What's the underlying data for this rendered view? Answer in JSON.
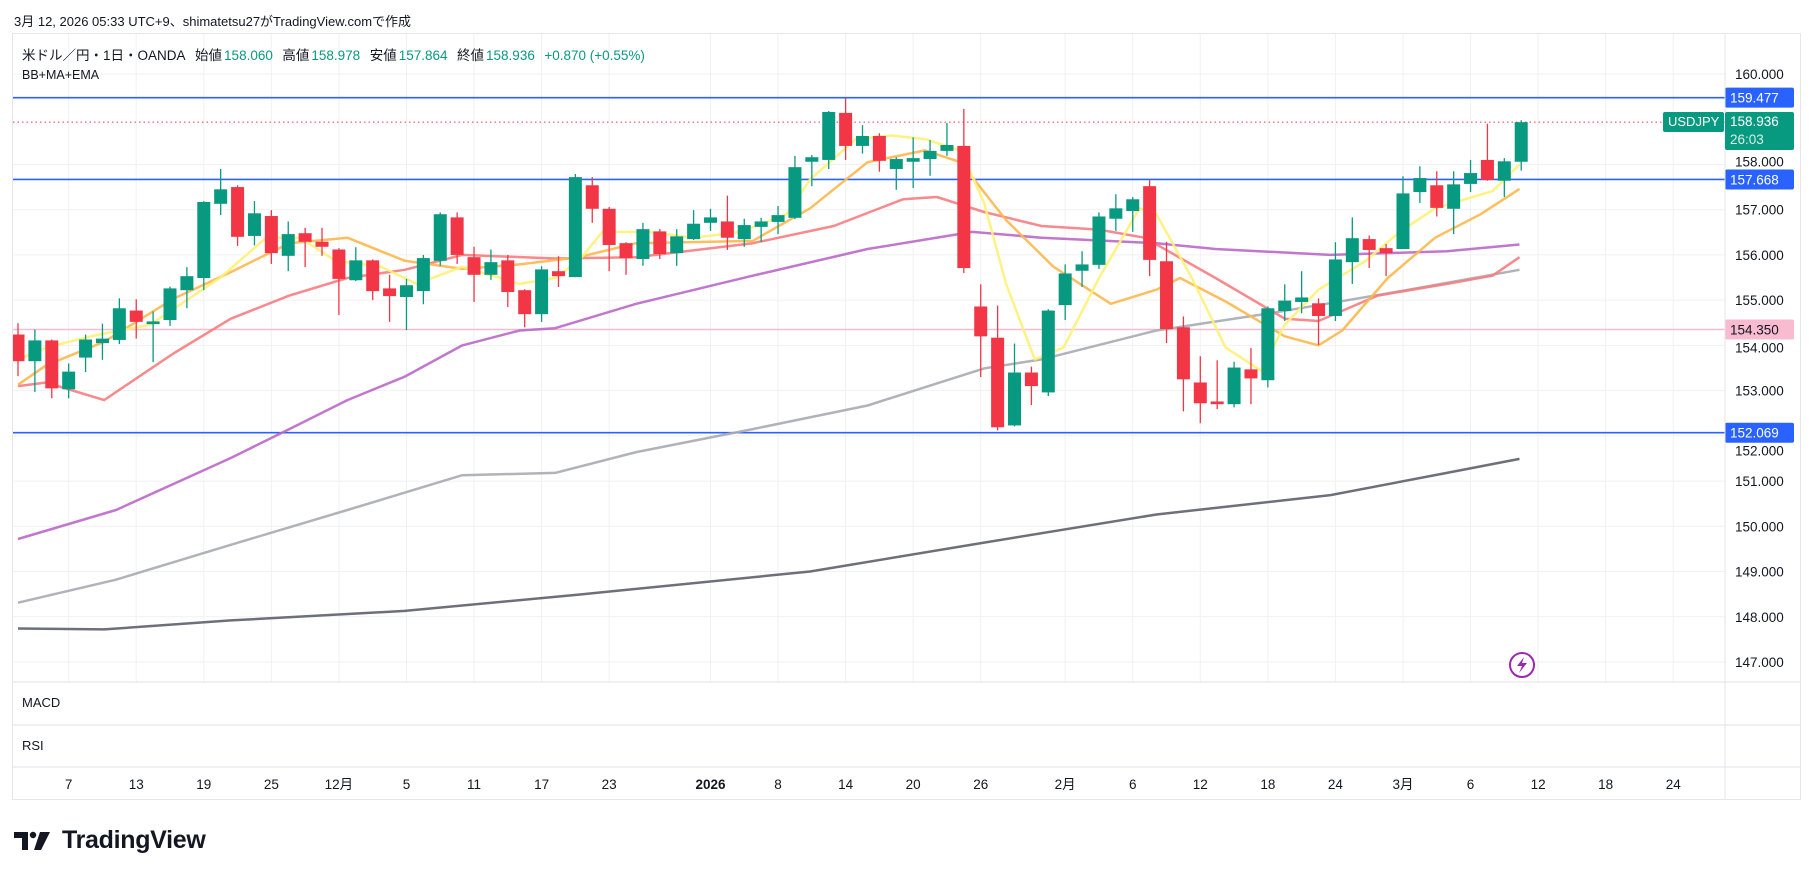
{
  "caption": "3月 12, 2026 05:33 UTC+9、shimatetsu27がTradingView.comで作成",
  "legend": {
    "symbol": "米ドル／円・1日・OANDA",
    "open_label": "始値",
    "open": "158.060",
    "high_label": "高値",
    "high": "158.978",
    "low_label": "安値",
    "low": "157.864",
    "close_label": "終値",
    "close": "158.936",
    "change": "+0.870 (+0.55%)"
  },
  "indicator_label": "BB+MA+EMA",
  "panels": {
    "macd": "MACD",
    "rsi": "RSI"
  },
  "symbol_tag": "USDJPY",
  "countdown": "26:03",
  "brand": "TradingView",
  "colors": {
    "up": "#089981",
    "down": "#f23645",
    "level": "#2962ff",
    "pink": "#f8bbd0"
  },
  "chart_data": {
    "type": "candlestick",
    "title": "米ドル／円・1日・OANDA",
    "ylim": [
      146.5,
      160.3
    ],
    "y_ticks": [
      "147.000",
      "148.000",
      "149.000",
      "150.000",
      "151.000",
      "152.000",
      "153.000",
      "154.000",
      "155.000",
      "156.000",
      "157.000",
      "158.000",
      "160.000"
    ],
    "y_tick_values": [
      147,
      148,
      149,
      150,
      151,
      152,
      153,
      154,
      155,
      156,
      157,
      158,
      160
    ],
    "x_ticks": [
      {
        "i": 3,
        "label": "7"
      },
      {
        "i": 7,
        "label": "13"
      },
      {
        "i": 11,
        "label": "19"
      },
      {
        "i": 15,
        "label": "25"
      },
      {
        "i": 19,
        "label": "12月"
      },
      {
        "i": 23,
        "label": "5"
      },
      {
        "i": 27,
        "label": "11"
      },
      {
        "i": 31,
        "label": "17"
      },
      {
        "i": 35,
        "label": "23"
      },
      {
        "i": 41,
        "label": "2026"
      },
      {
        "i": 45,
        "label": "8"
      },
      {
        "i": 49,
        "label": "14"
      },
      {
        "i": 53,
        "label": "20"
      },
      {
        "i": 57,
        "label": "26"
      },
      {
        "i": 62,
        "label": "2月"
      },
      {
        "i": 66,
        "label": "6"
      },
      {
        "i": 70,
        "label": "12"
      },
      {
        "i": 74,
        "label": "18"
      },
      {
        "i": 78,
        "label": "24"
      },
      {
        "i": 82,
        "label": "3月"
      },
      {
        "i": 86,
        "label": "6"
      },
      {
        "i": 90,
        "label": "12"
      },
      {
        "i": 94,
        "label": "18"
      },
      {
        "i": 98,
        "label": "24"
      }
    ],
    "ohlc": [
      [
        154.24,
        154.49,
        153.32,
        153.65
      ],
      [
        153.65,
        154.35,
        152.97,
        154.11
      ],
      [
        154.11,
        154.13,
        152.83,
        153.05
      ],
      [
        153.03,
        153.6,
        152.83,
        153.42
      ],
      [
        153.73,
        154.24,
        153.41,
        154.13
      ],
      [
        154.05,
        154.48,
        153.68,
        154.15
      ],
      [
        154.12,
        155.04,
        154.03,
        154.82
      ],
      [
        154.77,
        155.02,
        154.15,
        154.52
      ],
      [
        154.47,
        154.75,
        153.63,
        154.53
      ],
      [
        154.56,
        155.3,
        154.43,
        155.26
      ],
      [
        155.22,
        155.73,
        154.82,
        155.53
      ],
      [
        155.49,
        157.19,
        155.22,
        157.17
      ],
      [
        157.13,
        157.9,
        156.88,
        157.45
      ],
      [
        157.5,
        157.54,
        156.2,
        156.4
      ],
      [
        156.42,
        157.19,
        156.21,
        156.92
      ],
      [
        156.86,
        156.99,
        155.8,
        156.04
      ],
      [
        155.98,
        156.74,
        155.64,
        156.46
      ],
      [
        156.48,
        156.6,
        155.73,
        156.29
      ],
      [
        156.29,
        156.6,
        155.98,
        156.18
      ],
      [
        156.12,
        156.15,
        154.67,
        155.47
      ],
      [
        155.44,
        156.17,
        155.42,
        155.88
      ],
      [
        155.88,
        155.9,
        155.0,
        155.2
      ],
      [
        155.26,
        155.56,
        154.52,
        155.09
      ],
      [
        155.07,
        155.47,
        154.34,
        155.33
      ],
      [
        155.2,
        156.0,
        154.91,
        155.93
      ],
      [
        155.87,
        156.94,
        155.76,
        156.9
      ],
      [
        156.83,
        156.94,
        155.8,
        156.0
      ],
      [
        155.95,
        156.18,
        154.96,
        155.56
      ],
      [
        155.56,
        156.12,
        155.45,
        155.84
      ],
      [
        155.88,
        156.0,
        154.85,
        155.18
      ],
      [
        155.22,
        155.24,
        154.4,
        154.69
      ],
      [
        154.69,
        155.75,
        154.52,
        155.68
      ],
      [
        155.64,
        155.97,
        155.29,
        155.53
      ],
      [
        155.51,
        157.79,
        155.51,
        157.72
      ],
      [
        157.54,
        157.72,
        156.71,
        157.02
      ],
      [
        157.02,
        157.06,
        155.64,
        156.22
      ],
      [
        156.26,
        156.28,
        155.56,
        155.93
      ],
      [
        155.91,
        156.71,
        155.76,
        156.57
      ],
      [
        156.52,
        156.57,
        155.91,
        156.02
      ],
      [
        156.04,
        156.57,
        155.76,
        156.41
      ],
      [
        156.35,
        156.99,
        156.33,
        156.69
      ],
      [
        156.71,
        157.02,
        156.53,
        156.83
      ],
      [
        156.74,
        157.31,
        156.11,
        156.38
      ],
      [
        156.35,
        156.8,
        156.18,
        156.66
      ],
      [
        156.62,
        156.82,
        156.29,
        156.74
      ],
      [
        156.73,
        157.08,
        156.46,
        156.88
      ],
      [
        156.82,
        158.19,
        156.79,
        157.94
      ],
      [
        158.06,
        158.21,
        157.52,
        158.16
      ],
      [
        158.1,
        159.18,
        157.9,
        159.16
      ],
      [
        159.14,
        159.46,
        158.1,
        158.41
      ],
      [
        158.41,
        158.87,
        158.24,
        158.63
      ],
      [
        158.63,
        158.69,
        157.84,
        158.08
      ],
      [
        157.9,
        158.16,
        157.44,
        158.12
      ],
      [
        158.06,
        158.6,
        157.48,
        158.14
      ],
      [
        158.12,
        158.54,
        157.75,
        158.3
      ],
      [
        158.3,
        158.92,
        158.19,
        158.43
      ],
      [
        158.41,
        159.23,
        155.6,
        155.71
      ],
      [
        154.86,
        155.35,
        153.3,
        154.2
      ],
      [
        154.17,
        154.88,
        152.12,
        152.19
      ],
      [
        152.23,
        154.04,
        152.21,
        153.4
      ],
      [
        153.4,
        153.53,
        152.68,
        153.1
      ],
      [
        152.96,
        154.8,
        152.88,
        154.77
      ],
      [
        154.89,
        155.79,
        154.56,
        155.59
      ],
      [
        155.65,
        156.08,
        155.29,
        155.79
      ],
      [
        155.78,
        156.94,
        155.69,
        156.85
      ],
      [
        156.8,
        157.34,
        156.53,
        157.03
      ],
      [
        156.97,
        157.28,
        156.51,
        157.23
      ],
      [
        157.52,
        157.65,
        155.53,
        155.89
      ],
      [
        155.86,
        156.29,
        154.05,
        154.36
      ],
      [
        154.4,
        154.64,
        152.54,
        153.25
      ],
      [
        153.18,
        153.76,
        152.28,
        152.72
      ],
      [
        152.76,
        153.67,
        152.59,
        152.7
      ],
      [
        152.7,
        153.64,
        152.63,
        153.51
      ],
      [
        153.47,
        153.94,
        152.7,
        153.27
      ],
      [
        153.23,
        154.86,
        153.07,
        154.82
      ],
      [
        154.76,
        155.35,
        154.54,
        154.99
      ],
      [
        154.96,
        155.64,
        154.71,
        155.06
      ],
      [
        154.93,
        155.04,
        154.01,
        154.65
      ],
      [
        154.65,
        156.28,
        154.54,
        155.9
      ],
      [
        155.84,
        156.83,
        155.36,
        156.37
      ],
      [
        156.35,
        156.43,
        155.71,
        156.11
      ],
      [
        156.15,
        156.24,
        155.53,
        156.04
      ],
      [
        156.13,
        157.74,
        156.13,
        157.36
      ],
      [
        157.39,
        157.96,
        157.15,
        157.7
      ],
      [
        157.54,
        157.85,
        156.85,
        157.04
      ],
      [
        157.02,
        157.85,
        156.46,
        157.56
      ],
      [
        157.57,
        158.1,
        157.39,
        157.81
      ],
      [
        158.1,
        158.9,
        157.64,
        157.66
      ],
      [
        157.64,
        158.14,
        157.28,
        158.07
      ],
      [
        158.06,
        158.978,
        157.864,
        158.936
      ]
    ],
    "lines": [
      {
        "name": "ma-dark-gray",
        "color": "#5d606b",
        "points": [
          [
            0,
            147.74
          ],
          [
            5.1,
            147.72
          ],
          [
            12.6,
            147.92
          ],
          [
            22.9,
            148.13
          ],
          [
            33.2,
            148.49
          ],
          [
            46.9,
            149.0
          ],
          [
            57.2,
            149.64
          ],
          [
            67.4,
            150.26
          ],
          [
            77.7,
            150.69
          ],
          [
            84.6,
            151.18
          ],
          [
            88.9,
            151.49
          ]
        ]
      },
      {
        "name": "ma-light-gray",
        "color": "#a9abb2",
        "points": [
          [
            0,
            148.31
          ],
          [
            5.8,
            148.82
          ],
          [
            12.6,
            149.59
          ],
          [
            19.5,
            150.36
          ],
          [
            26.3,
            151.13
          ],
          [
            31.8,
            151.18
          ],
          [
            36.6,
            151.64
          ],
          [
            43.5,
            152.15
          ],
          [
            50.3,
            152.67
          ],
          [
            57.2,
            153.49
          ],
          [
            60.6,
            153.69
          ],
          [
            67.4,
            154.33
          ],
          [
            74.3,
            154.72
          ],
          [
            81.1,
            155.15
          ],
          [
            88.9,
            155.67
          ]
        ]
      },
      {
        "name": "ma-purple",
        "color": "#ba68c8",
        "points": [
          [
            0,
            149.72
          ],
          [
            5.8,
            150.36
          ],
          [
            12.6,
            151.51
          ],
          [
            16.06,
            152.15
          ],
          [
            19.5,
            152.79
          ],
          [
            22.9,
            153.31
          ],
          [
            26.3,
            154.0
          ],
          [
            29.7,
            154.33
          ],
          [
            31.8,
            154.38
          ],
          [
            36.6,
            154.92
          ],
          [
            43.5,
            155.54
          ],
          [
            50.3,
            156.13
          ],
          [
            56.5,
            156.51
          ],
          [
            60.6,
            156.38
          ],
          [
            67.4,
            156.26
          ],
          [
            70.9,
            156.13
          ],
          [
            77.7,
            156.0
          ],
          [
            84.6,
            156.08
          ],
          [
            88.9,
            156.23
          ]
        ]
      },
      {
        "name": "ema-salmon",
        "color": "#f77c80",
        "points": [
          [
            0,
            153.1
          ],
          [
            1.67,
            153.18
          ],
          [
            5.1,
            152.79
          ],
          [
            9.2,
            153.82
          ],
          [
            12.6,
            154.59
          ],
          [
            16.06,
            155.1
          ],
          [
            19.5,
            155.49
          ],
          [
            22.9,
            155.67
          ],
          [
            26.3,
            156.0
          ],
          [
            31.8,
            155.92
          ],
          [
            36.6,
            155.95
          ],
          [
            43.5,
            156.26
          ],
          [
            48.3,
            156.64
          ],
          [
            52.4,
            157.23
          ],
          [
            54.4,
            157.28
          ],
          [
            57.2,
            156.95
          ],
          [
            60.6,
            156.64
          ],
          [
            64.0,
            156.56
          ],
          [
            66.7,
            156.38
          ],
          [
            70.9,
            155.49
          ],
          [
            75.0,
            154.59
          ],
          [
            77.0,
            154.54
          ],
          [
            80.5,
            155.1
          ],
          [
            84.6,
            155.36
          ],
          [
            87.3,
            155.54
          ],
          [
            88.9,
            155.95
          ]
        ]
      },
      {
        "name": "ema-orange",
        "color": "#ffb74d",
        "points": [
          [
            0,
            153.13
          ],
          [
            1.67,
            153.56
          ],
          [
            5.1,
            154.08
          ],
          [
            9.2,
            155.03
          ],
          [
            12.6,
            155.62
          ],
          [
            16.06,
            156.26
          ],
          [
            19.5,
            156.38
          ],
          [
            22.9,
            155.87
          ],
          [
            26.3,
            155.69
          ],
          [
            29.7,
            155.79
          ],
          [
            33.2,
            155.95
          ],
          [
            36.6,
            156.26
          ],
          [
            43.5,
            156.31
          ],
          [
            46.9,
            157.03
          ],
          [
            50.3,
            158.05
          ],
          [
            53.7,
            158.31
          ],
          [
            55.8,
            158.05
          ],
          [
            58.5,
            156.77
          ],
          [
            61.3,
            155.74
          ],
          [
            64.7,
            154.92
          ],
          [
            67.4,
            155.23
          ],
          [
            68.8,
            155.49
          ],
          [
            71.5,
            154.97
          ],
          [
            75.0,
            154.2
          ],
          [
            77.0,
            154.0
          ],
          [
            78.4,
            154.33
          ],
          [
            81.1,
            155.49
          ],
          [
            83.9,
            156.38
          ],
          [
            86.6,
            156.9
          ],
          [
            88.9,
            157.46
          ]
        ]
      },
      {
        "name": "ema-yellow",
        "color": "#fff176",
        "points": [
          [
            0,
            153.69
          ],
          [
            1.67,
            153.95
          ],
          [
            4.41,
            154.21
          ],
          [
            7.84,
            154.46
          ],
          [
            11.95,
            155.49
          ],
          [
            14.7,
            156.38
          ],
          [
            16.7,
            156.38
          ],
          [
            18.8,
            155.87
          ],
          [
            21.5,
            155.74
          ],
          [
            23.6,
            155.36
          ],
          [
            26.3,
            155.74
          ],
          [
            29.7,
            155.36
          ],
          [
            31.8,
            155.49
          ],
          [
            33.2,
            155.87
          ],
          [
            34.6,
            156.51
          ],
          [
            37.3,
            156.51
          ],
          [
            40.0,
            156.38
          ],
          [
            42.8,
            156.51
          ],
          [
            45.5,
            156.9
          ],
          [
            46.9,
            157.67
          ],
          [
            49.6,
            158.56
          ],
          [
            51.7,
            158.64
          ],
          [
            53.7,
            158.56
          ],
          [
            55.8,
            158.31
          ],
          [
            57.2,
            157.15
          ],
          [
            58.5,
            155.36
          ],
          [
            60.2,
            153.69
          ],
          [
            61.9,
            153.95
          ],
          [
            64.0,
            155.49
          ],
          [
            66.4,
            157.03
          ],
          [
            67.4,
            156.9
          ],
          [
            69.5,
            155.49
          ],
          [
            71.5,
            153.95
          ],
          [
            73.6,
            153.44
          ],
          [
            75.0,
            154.46
          ],
          [
            77.0,
            155.23
          ],
          [
            79.8,
            155.87
          ],
          [
            81.8,
            156.51
          ],
          [
            83.9,
            157.03
          ],
          [
            87.3,
            157.41
          ],
          [
            88.9,
            158.0
          ]
        ]
      }
    ],
    "levels": [
      {
        "value": 159.477,
        "label": "159.477",
        "color": "#2962ff",
        "kind": "solid"
      },
      {
        "value": 157.668,
        "label": "157.668",
        "color": "#2962ff",
        "kind": "solid"
      },
      {
        "value": 152.069,
        "label": "152.069",
        "color": "#2962ff",
        "kind": "solid"
      },
      {
        "value": 154.35,
        "label": "154.350",
        "color": "#f8bbd0",
        "kind": "pink"
      }
    ],
    "last_price": {
      "value": 158.936,
      "label": "158.936"
    }
  }
}
